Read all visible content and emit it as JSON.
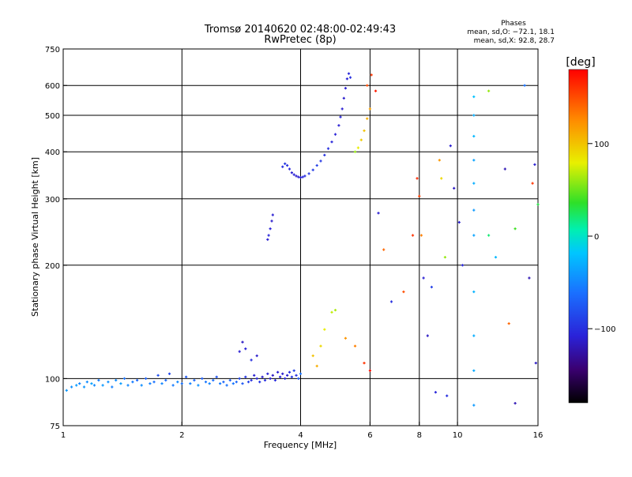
{
  "chart_data": {
    "type": "scatter",
    "title": "Tromsø 20140620 02:48:00-02:49:43",
    "subtitle": "RwPretec (8p)",
    "phases": {
      "heading": "Phases",
      "line1": "mean, sd,O: −72.1, 18.1",
      "line2": "mean, sd,X:  92.8, 28.7"
    },
    "xlabel": "Frequency [MHz]",
    "ylabel": "Stationary phase Virtual Height [km]",
    "x_scale": "log",
    "y_scale": "log",
    "xlim": [
      1,
      16
    ],
    "ylim": [
      75,
      750
    ],
    "x_ticks": [
      1,
      2,
      4,
      6,
      8,
      10,
      16
    ],
    "x_tick_labels": [
      "1",
      "2",
      "4",
      "6",
      "8",
      "10",
      "16"
    ],
    "y_ticks": [
      75,
      100,
      200,
      300,
      400,
      500,
      600,
      750
    ],
    "y_tick_labels": [
      "75",
      "100",
      "200",
      "300",
      "400",
      "500",
      "600",
      "750"
    ],
    "x_gridlines": [
      2,
      4,
      6,
      8,
      10
    ],
    "y_gridlines": [
      100,
      200,
      300,
      400,
      500,
      600
    ],
    "colorbar": {
      "label": "[deg]",
      "range": [
        -180,
        180
      ],
      "ticks": [
        100,
        0,
        -100
      ],
      "tick_labels": [
        "100",
        "0",
        "−100"
      ]
    },
    "series": [
      {
        "points": [
          [
            1.02,
            93,
            -40
          ],
          [
            1.05,
            95,
            -45
          ],
          [
            1.08,
            96,
            -38
          ],
          [
            1.1,
            97,
            -50
          ],
          [
            1.13,
            95,
            -42
          ],
          [
            1.15,
            98,
            -47
          ],
          [
            1.18,
            97,
            -36
          ],
          [
            1.2,
            96,
            -48
          ],
          [
            1.23,
            99,
            -55
          ],
          [
            1.26,
            96,
            -40
          ],
          [
            1.3,
            98,
            -44
          ],
          [
            1.33,
            95,
            -52
          ],
          [
            1.36,
            99,
            -46
          ],
          [
            1.4,
            97,
            -38
          ],
          [
            1.43,
            100,
            -60
          ],
          [
            1.46,
            96,
            -49
          ],
          [
            1.5,
            98,
            -55
          ],
          [
            1.54,
            99,
            -65
          ],
          [
            1.58,
            96,
            -45
          ],
          [
            1.62,
            100,
            -70
          ],
          [
            1.66,
            97,
            -52
          ],
          [
            1.7,
            98,
            -60
          ],
          [
            1.74,
            102,
            -80
          ],
          [
            1.78,
            97,
            -50
          ],
          [
            1.82,
            99,
            -63
          ],
          [
            1.86,
            103,
            -85
          ],
          [
            1.9,
            96,
            -55
          ],
          [
            1.95,
            98,
            -48
          ],
          [
            2.0,
            97,
            -60
          ],
          [
            2.05,
            101,
            -75
          ],
          [
            2.1,
            97,
            -52
          ],
          [
            2.15,
            99,
            -66
          ],
          [
            2.2,
            96,
            -44
          ],
          [
            2.25,
            100,
            -72
          ],
          [
            2.3,
            98,
            -58
          ],
          [
            2.35,
            97,
            -50
          ],
          [
            2.4,
            99,
            -62
          ],
          [
            2.45,
            101,
            -78
          ],
          [
            2.5,
            97,
            -55
          ],
          [
            2.55,
            98,
            -67
          ],
          [
            2.6,
            96,
            -60
          ],
          [
            2.65,
            99,
            -70
          ],
          [
            2.7,
            97,
            -58
          ],
          [
            2.75,
            98,
            -66
          ],
          [
            2.8,
            100,
            -85
          ],
          [
            2.85,
            97,
            -75
          ],
          [
            2.9,
            101,
            -95
          ],
          [
            2.95,
            98,
            -88
          ],
          [
            3.0,
            99,
            -100
          ],
          [
            3.05,
            102,
            -110
          ],
          [
            3.1,
            100,
            -105
          ],
          [
            3.15,
            98,
            -95
          ],
          [
            3.2,
            101,
            -112
          ],
          [
            3.25,
            99,
            -100
          ],
          [
            3.3,
            103,
            -108
          ],
          [
            3.35,
            100,
            -110
          ],
          [
            3.4,
            102,
            -115
          ],
          [
            3.45,
            99,
            -102
          ],
          [
            3.5,
            104,
            -110
          ],
          [
            3.55,
            101,
            -108
          ],
          [
            3.6,
            103,
            -112
          ],
          [
            3.65,
            100,
            -105
          ],
          [
            3.7,
            102,
            -110
          ],
          [
            3.75,
            104,
            -100
          ],
          [
            3.8,
            101,
            -95
          ],
          [
            3.85,
            105,
            -90
          ],
          [
            3.9,
            102,
            -98
          ],
          [
            3.95,
            100,
            -75
          ],
          [
            4.0,
            103,
            -60
          ],
          [
            2.8,
            118,
            -110
          ],
          [
            2.85,
            125,
            -115
          ],
          [
            2.9,
            120,
            -108
          ],
          [
            3.0,
            112,
            -100
          ],
          [
            3.1,
            115,
            -112
          ],
          [
            3.3,
            234,
            -110
          ],
          [
            3.32,
            240,
            -105
          ],
          [
            3.35,
            250,
            -108
          ],
          [
            3.38,
            262,
            -112
          ],
          [
            3.4,
            272,
            -110
          ],
          [
            3.6,
            365,
            -100
          ],
          [
            3.65,
            372,
            -95
          ],
          [
            3.7,
            368,
            -100
          ],
          [
            3.75,
            360,
            -105
          ],
          [
            3.8,
            352,
            -110
          ],
          [
            3.85,
            348,
            -108
          ],
          [
            3.9,
            345,
            -112
          ],
          [
            3.95,
            343,
            -110
          ],
          [
            4.0,
            342,
            -108
          ],
          [
            4.05,
            343,
            -105
          ],
          [
            4.1,
            345,
            -100
          ],
          [
            4.2,
            350,
            -95
          ],
          [
            4.3,
            358,
            -92
          ],
          [
            4.4,
            368,
            -90
          ],
          [
            4.5,
            378,
            -95
          ],
          [
            4.6,
            392,
            -98
          ],
          [
            4.7,
            408,
            -100
          ],
          [
            4.8,
            425,
            -105
          ],
          [
            4.9,
            445,
            -108
          ],
          [
            5.0,
            470,
            -110
          ],
          [
            5.05,
            495,
            -105
          ],
          [
            5.1,
            520,
            -110
          ],
          [
            5.15,
            555,
            -112
          ],
          [
            5.2,
            590,
            -110
          ],
          [
            5.25,
            625,
            -108
          ],
          [
            5.3,
            645,
            -105
          ],
          [
            5.35,
            630,
            -100
          ],
          [
            5.5,
            400,
            60
          ],
          [
            5.6,
            410,
            80
          ],
          [
            5.7,
            430,
            95
          ],
          [
            5.8,
            455,
            100
          ],
          [
            5.9,
            490,
            110
          ],
          [
            6.0,
            520,
            115
          ],
          [
            5.9,
            600,
            150
          ],
          [
            6.05,
            640,
            160
          ],
          [
            6.2,
            580,
            170
          ],
          [
            4.3,
            115,
            100
          ],
          [
            4.4,
            108,
            110
          ],
          [
            4.5,
            122,
            90
          ],
          [
            4.6,
            135,
            80
          ],
          [
            4.8,
            150,
            70
          ],
          [
            4.9,
            152,
            65
          ],
          [
            5.2,
            128,
            120
          ],
          [
            5.5,
            122,
            130
          ],
          [
            5.8,
            110,
            160
          ],
          [
            6.0,
            105,
            175
          ],
          [
            6.3,
            275,
            -110
          ],
          [
            6.5,
            220,
            140
          ],
          [
            6.8,
            160,
            -100
          ],
          [
            7.3,
            170,
            150
          ],
          [
            7.7,
            240,
            160
          ],
          [
            7.9,
            340,
            165
          ],
          [
            8.0,
            305,
            155
          ],
          [
            8.1,
            240,
            130
          ],
          [
            8.2,
            185,
            -110
          ],
          [
            8.4,
            130,
            -115
          ],
          [
            8.6,
            175,
            -90
          ],
          [
            8.8,
            92,
            -105
          ],
          [
            9.0,
            380,
            120
          ],
          [
            9.1,
            340,
            90
          ],
          [
            9.3,
            210,
            60
          ],
          [
            9.4,
            90,
            -100
          ],
          [
            9.6,
            415,
            -110
          ],
          [
            9.8,
            320,
            -115
          ],
          [
            10.1,
            260,
            -110
          ],
          [
            10.3,
            200,
            -105
          ],
          [
            11.0,
            560,
            -20
          ],
          [
            11.0,
            500,
            -30
          ],
          [
            11.0,
            440,
            -25
          ],
          [
            11.0,
            380,
            -35
          ],
          [
            11.0,
            330,
            -30
          ],
          [
            11.0,
            280,
            -40
          ],
          [
            11.0,
            240,
            -35
          ],
          [
            11.0,
            170,
            -28
          ],
          [
            11.0,
            130,
            -30
          ],
          [
            11.0,
            105,
            -32
          ],
          [
            11.0,
            85,
            -40
          ],
          [
            12.0,
            580,
            60
          ],
          [
            12.0,
            240,
            20
          ],
          [
            12.5,
            210,
            -25
          ],
          [
            13.2,
            360,
            -120
          ],
          [
            13.5,
            140,
            140
          ],
          [
            14.0,
            250,
            40
          ],
          [
            14.8,
            600,
            -60
          ],
          [
            15.2,
            185,
            -120
          ],
          [
            15.5,
            330,
            160
          ],
          [
            15.7,
            370,
            -110
          ],
          [
            15.8,
            110,
            -115
          ],
          [
            14.0,
            86,
            -120
          ],
          [
            16.0,
            290,
            30
          ]
        ]
      }
    ]
  }
}
